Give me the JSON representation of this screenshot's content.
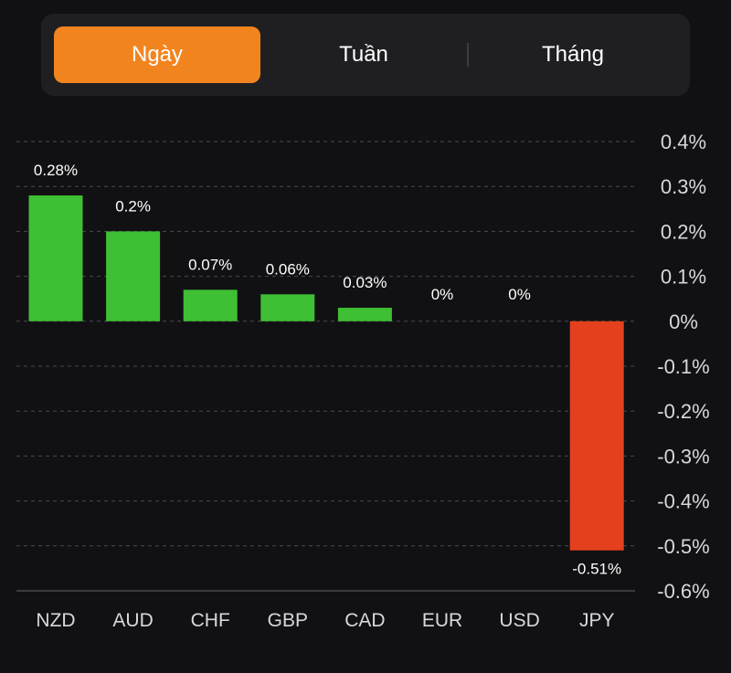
{
  "tabs": [
    {
      "label": "Ngày",
      "active": true
    },
    {
      "label": "Tuần",
      "active": false
    },
    {
      "label": "Tháng",
      "active": false
    }
  ],
  "colors": {
    "positive": "#3fbf34",
    "negative": "#e5401e",
    "accent": "#f2841f",
    "grid": "#4a4a4f",
    "label": "#d8d8dc"
  },
  "chart_data": {
    "type": "bar",
    "categories": [
      "NZD",
      "AUD",
      "CHF",
      "GBP",
      "CAD",
      "EUR",
      "USD",
      "JPY"
    ],
    "values": [
      0.28,
      0.2,
      0.07,
      0.06,
      0.03,
      0,
      0,
      -0.51
    ],
    "value_labels": [
      "0.28%",
      "0.2%",
      "0.07%",
      "0.06%",
      "0.03%",
      "0%",
      "0%",
      "-0.51%"
    ],
    "yticks": [
      "0.4%",
      "0.3%",
      "0.2%",
      "0.1%",
      "0%",
      "-0.1%",
      "-0.2%",
      "-0.3%",
      "-0.4%",
      "-0.5%",
      "-0.6%"
    ],
    "ylim": [
      -0.6,
      0.4
    ],
    "grid": true,
    "axis_side": "right"
  }
}
